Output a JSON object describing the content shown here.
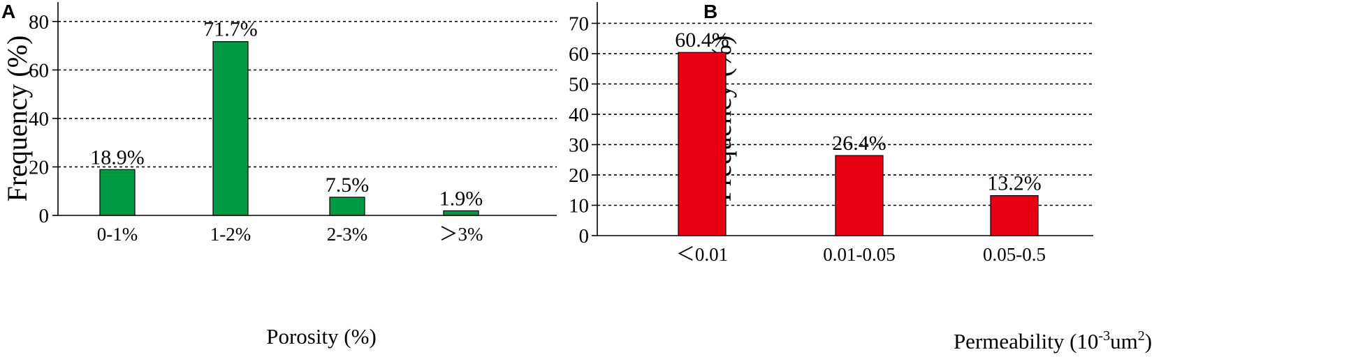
{
  "chart_data": [
    {
      "panel": "A",
      "type": "bar",
      "categories": [
        "0-1%",
        "1-2%",
        "2-3%",
        "＞3%"
      ],
      "values": [
        18.9,
        71.7,
        7.5,
        1.9
      ],
      "data_labels": [
        "18.9%",
        "71.7%",
        "7.5%",
        "1.9%"
      ],
      "xlabel": "Porosity (%)",
      "ylabel": "Frequency (%)",
      "ylim": [
        0,
        88
      ],
      "yticks": [
        0,
        20,
        40,
        60,
        80
      ],
      "grid": "horizontal-dashed",
      "bar_color": "#009a44"
    },
    {
      "panel": "B",
      "type": "bar",
      "categories": [
        "＜0.01",
        "0.01-0.05",
        "0.05-0.5"
      ],
      "values": [
        60.4,
        26.4,
        13.2
      ],
      "data_labels": [
        "60.4%",
        "26.4%",
        "13.2%"
      ],
      "xlabel": "Permeability (10",
      "xlabel_sup": "-3",
      "xlabel_unit": "um",
      "xlabel_sup2": "2",
      "xlabel_end": ")",
      "ylabel": "Frequency (%)",
      "ylim": [
        0,
        77
      ],
      "yticks": [
        0,
        10,
        20,
        30,
        40,
        50,
        60,
        70
      ],
      "grid": "horizontal-dashed",
      "bar_color": "#e60012"
    }
  ]
}
